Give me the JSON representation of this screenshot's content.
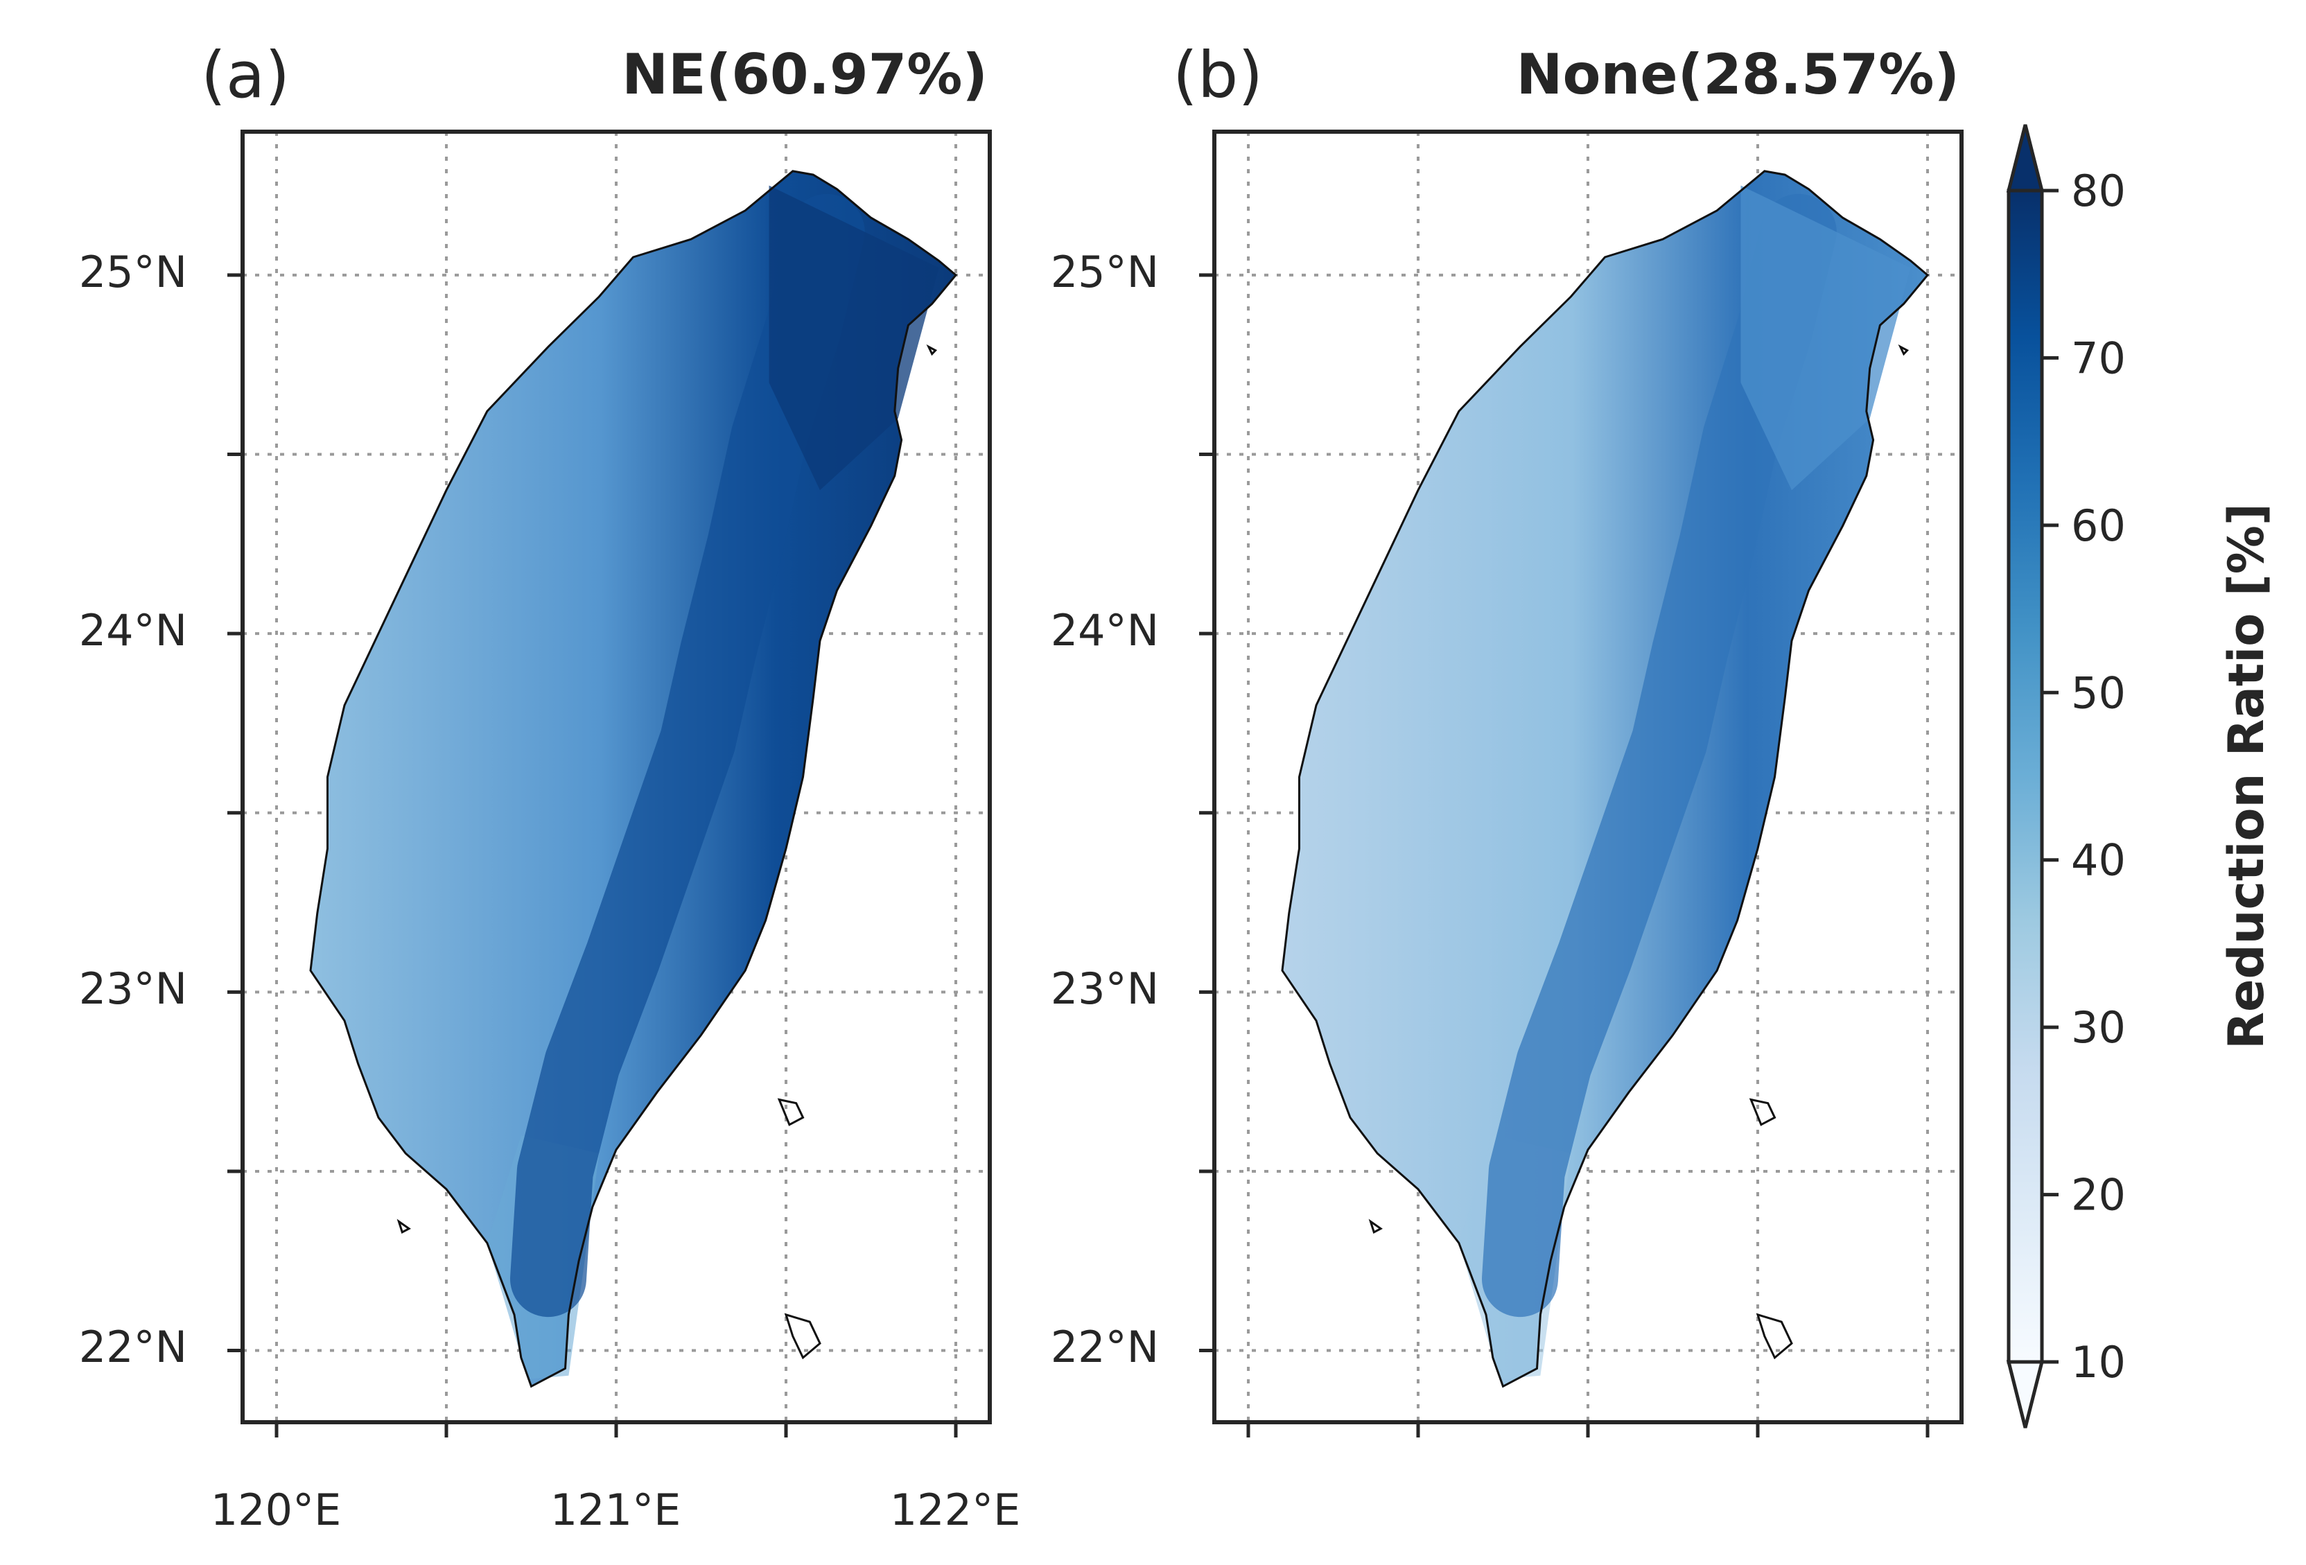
{
  "panels": [
    {
      "id": "a",
      "label": "(a)",
      "title": "NE(60.97%)",
      "show_xtick_labels": true,
      "shading": {
        "west": "#8fbfe0",
        "mid": "#5596cf",
        "ridge": "#0f4d96",
        "north_east": "#0b3a7a",
        "south": "#6aaad6"
      }
    },
    {
      "id": "b",
      "label": "(b)",
      "title": "None(28.57%)",
      "show_xtick_labels": false,
      "shading": {
        "west": "#b6d3ea",
        "mid": "#91c0e1",
        "ridge": "#2f73b9",
        "north_east": "#4b8fcc",
        "south": "#9cc6e4"
      }
    }
  ],
  "axes": {
    "lon_range": [
      119.9,
      122.1
    ],
    "lat_range": [
      21.8,
      25.4
    ],
    "x_ticks": [
      120,
      120.5,
      121,
      121.5,
      122
    ],
    "x_tick_labels": [
      "120°E",
      "",
      "121°E",
      "",
      "122°E"
    ],
    "y_ticks": [
      22,
      22.5,
      23,
      23.5,
      24,
      24.5,
      25
    ],
    "y_tick_labels": [
      "22°N",
      "",
      "23°N",
      "",
      "24°N",
      "",
      "25°N"
    ],
    "gridlines": true,
    "grid_style": "dotted"
  },
  "colorbar": {
    "label": "Reduction Ratio [%]",
    "min": 10,
    "max": 80,
    "ticks": [
      "10",
      "20",
      "30",
      "40",
      "50",
      "60",
      "70",
      "80"
    ],
    "extend": "both",
    "colors": [
      "#f7fbff",
      "#deebf7",
      "#c6dbef",
      "#9ecae1",
      "#6baed6",
      "#4292c6",
      "#2171b5",
      "#08519c",
      "#08306b"
    ]
  }
}
